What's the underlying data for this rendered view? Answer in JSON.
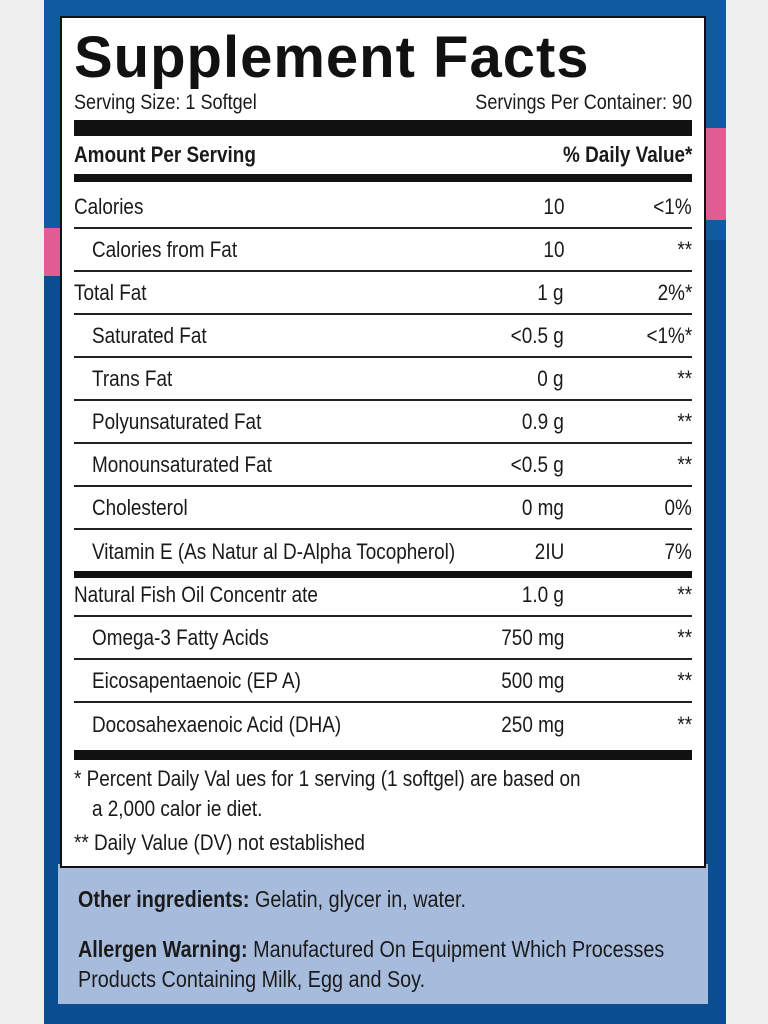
{
  "title": "Supplement Facts",
  "serving_size": "Serving Size: 1 Softgel",
  "servings_per_container": "Servings Per Container: 90",
  "header": {
    "amount_label": "Amount Per Serving",
    "dv_label": "% Daily Value*"
  },
  "rows": [
    {
      "name": "Calories",
      "amount": "10",
      "dv": "<1%",
      "indent": false
    },
    {
      "name": "Calories from Fat",
      "amount": "10",
      "dv": "**",
      "indent": true
    },
    {
      "name": "Total Fat",
      "amount": "1 g",
      "dv": "2%*",
      "indent": false
    },
    {
      "name": "Saturated Fat",
      "amount": "<0.5 g",
      "dv": "<1%*",
      "indent": true
    },
    {
      "name": "Trans Fat",
      "amount": "0 g",
      "dv": "**",
      "indent": true
    },
    {
      "name": "Polyunsaturated Fat",
      "amount": "0.9 g",
      "dv": "**",
      "indent": true
    },
    {
      "name": "Monounsaturated Fat",
      "amount": "<0.5 g",
      "dv": "**",
      "indent": true
    },
    {
      "name": "Cholesterol",
      "amount": "0 mg",
      "dv": "0%",
      "indent": true
    },
    {
      "name": "Vitamin E (As Natur al D-Alpha Tocopherol)",
      "amount": "2IU",
      "dv": "7%",
      "indent": true
    },
    {
      "name": "Natural Fish Oil Concentr ate",
      "amount": "1.0 g",
      "dv": "**",
      "indent": false
    },
    {
      "name": "Omega-3 Fatty Acids",
      "amount": "750 mg",
      "dv": "**",
      "indent": true
    },
    {
      "name": "Eicosapentaenoic (EP A)",
      "amount": "500 mg",
      "dv": "**",
      "indent": true
    },
    {
      "name": "Docosahexaenoic Acid (DHA)",
      "amount": "250 mg",
      "dv": "**",
      "indent": true
    }
  ],
  "footnotes": {
    "line1": "* Percent Daily Val ues for 1 serving (1 softgel) are based on",
    "line2": "a 2,000 calor ie diet.",
    "line3": "** Daily Value (DV) not established"
  },
  "other_ingredients": {
    "label": "Other ingredients:",
    "text": "Gelatin, glycer in, water."
  },
  "allergen": {
    "label": "Allergen Warning:",
    "text1": "Manufactured On Equipment Which Processes",
    "text2": "Products Containing Milk, Egg and Soy."
  },
  "colors": {
    "package_blue": "#0f5aa0",
    "package_pink": "#e05c93",
    "ingredients_panel": "#a7bcdd"
  }
}
